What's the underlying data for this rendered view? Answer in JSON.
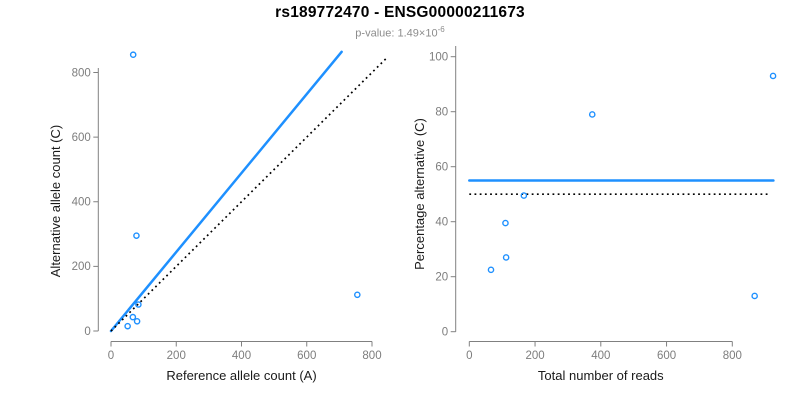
{
  "header": {
    "title": "rs189772470 - ENSG00000211673",
    "p_value": {
      "prefix": "p-value: 1.49×10",
      "exponent": "-6"
    }
  },
  "colors": {
    "accent_blue": "#1E90FF",
    "line_black": "#000000",
    "axis_gray": "#808080",
    "tick_text_gray": "#7D7D7D",
    "axis_title_color": "#1A1A1A",
    "subtitle_gray": "#8C8C8C"
  },
  "chart_data": [
    {
      "type": "scatter",
      "panel": "left",
      "xlabel": "Reference allele count (A)",
      "ylabel": "Alternative allele count (C)",
      "xlim": [
        0,
        860
      ],
      "ylim": [
        0,
        860
      ],
      "xticks": [
        0,
        200,
        400,
        600,
        800
      ],
      "yticks": [
        0,
        200,
        400,
        600,
        800
      ],
      "grid": false,
      "point_color": "#1E90FF",
      "points": [
        [
          51,
          15
        ],
        [
          80,
          30
        ],
        [
          67,
          43
        ],
        [
          84,
          82
        ],
        [
          78,
          295
        ],
        [
          755,
          112
        ],
        [
          68,
          855
        ]
      ],
      "lines": [
        {
          "name": "allelic-ratio-fit-line",
          "style": "solid",
          "color": "#1E90FF",
          "from": [
            0,
            0
          ],
          "to": [
            707,
            864
          ]
        },
        {
          "name": "identity-line",
          "style": "dotted",
          "color": "#000000",
          "from": [
            0,
            0
          ],
          "to": [
            848,
            848
          ]
        }
      ]
    },
    {
      "type": "scatter",
      "panel": "right",
      "xlabel": "Total number of reads",
      "ylabel": "Percentage alternative (C)",
      "xlim": [
        0,
        960
      ],
      "ylim": [
        0,
        100
      ],
      "xticks": [
        0,
        200,
        400,
        600,
        800
      ],
      "yticks": [
        0,
        20,
        40,
        60,
        80,
        100
      ],
      "grid": false,
      "point_color": "#1E90FF",
      "points": [
        [
          66,
          22.5
        ],
        [
          112,
          27
        ],
        [
          110,
          39.5
        ],
        [
          166,
          49.5
        ],
        [
          374,
          79
        ],
        [
          868,
          13
        ],
        [
          924,
          93
        ]
      ],
      "lines": [
        {
          "name": "mean-percentage-line",
          "style": "solid",
          "color": "#1E90FF",
          "from": [
            0,
            55
          ],
          "to": [
            925,
            55
          ]
        },
        {
          "name": "expected-50pct-line",
          "style": "dotted",
          "color": "#000000",
          "from": [
            0,
            50
          ],
          "to": [
            910,
            50
          ]
        }
      ]
    }
  ]
}
